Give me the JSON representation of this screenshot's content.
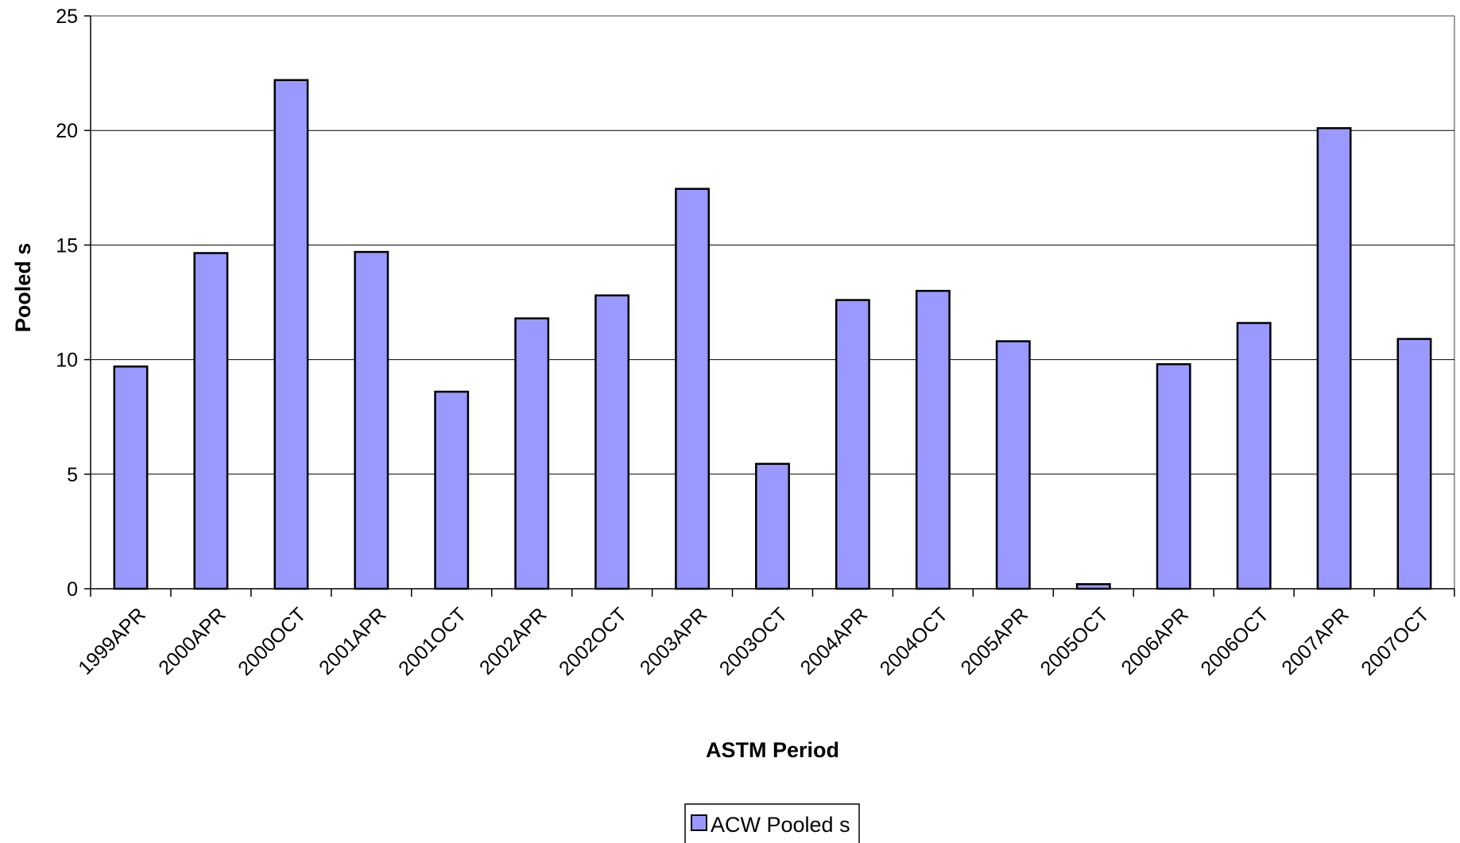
{
  "chart_data": {
    "type": "bar",
    "xlabel": "ASTM Period",
    "ylabel": "Pooled s",
    "ylim": [
      0,
      25
    ],
    "yticks": [
      0,
      5,
      10,
      15,
      20,
      25
    ],
    "grid": true,
    "legend_position": "bottom",
    "categories": [
      "1999APR",
      "2000APR",
      "2000OCT",
      "2001APR",
      "2001OCT",
      "2002APR",
      "2002OCT",
      "2003APR",
      "2003OCT",
      "2004APR",
      "2004OCT",
      "2005APR",
      "2005OCT",
      "2006APR",
      "2006OCT",
      "2007APR",
      "2007OCT"
    ],
    "series": [
      {
        "name": "ACW Pooled s",
        "color": "#9999ff",
        "values": [
          9.7,
          14.65,
          22.2,
          14.7,
          8.6,
          11.8,
          12.8,
          17.45,
          5.45,
          12.6,
          13.0,
          10.8,
          0.2,
          9.8,
          11.6,
          20.1,
          10.9
        ]
      }
    ]
  }
}
